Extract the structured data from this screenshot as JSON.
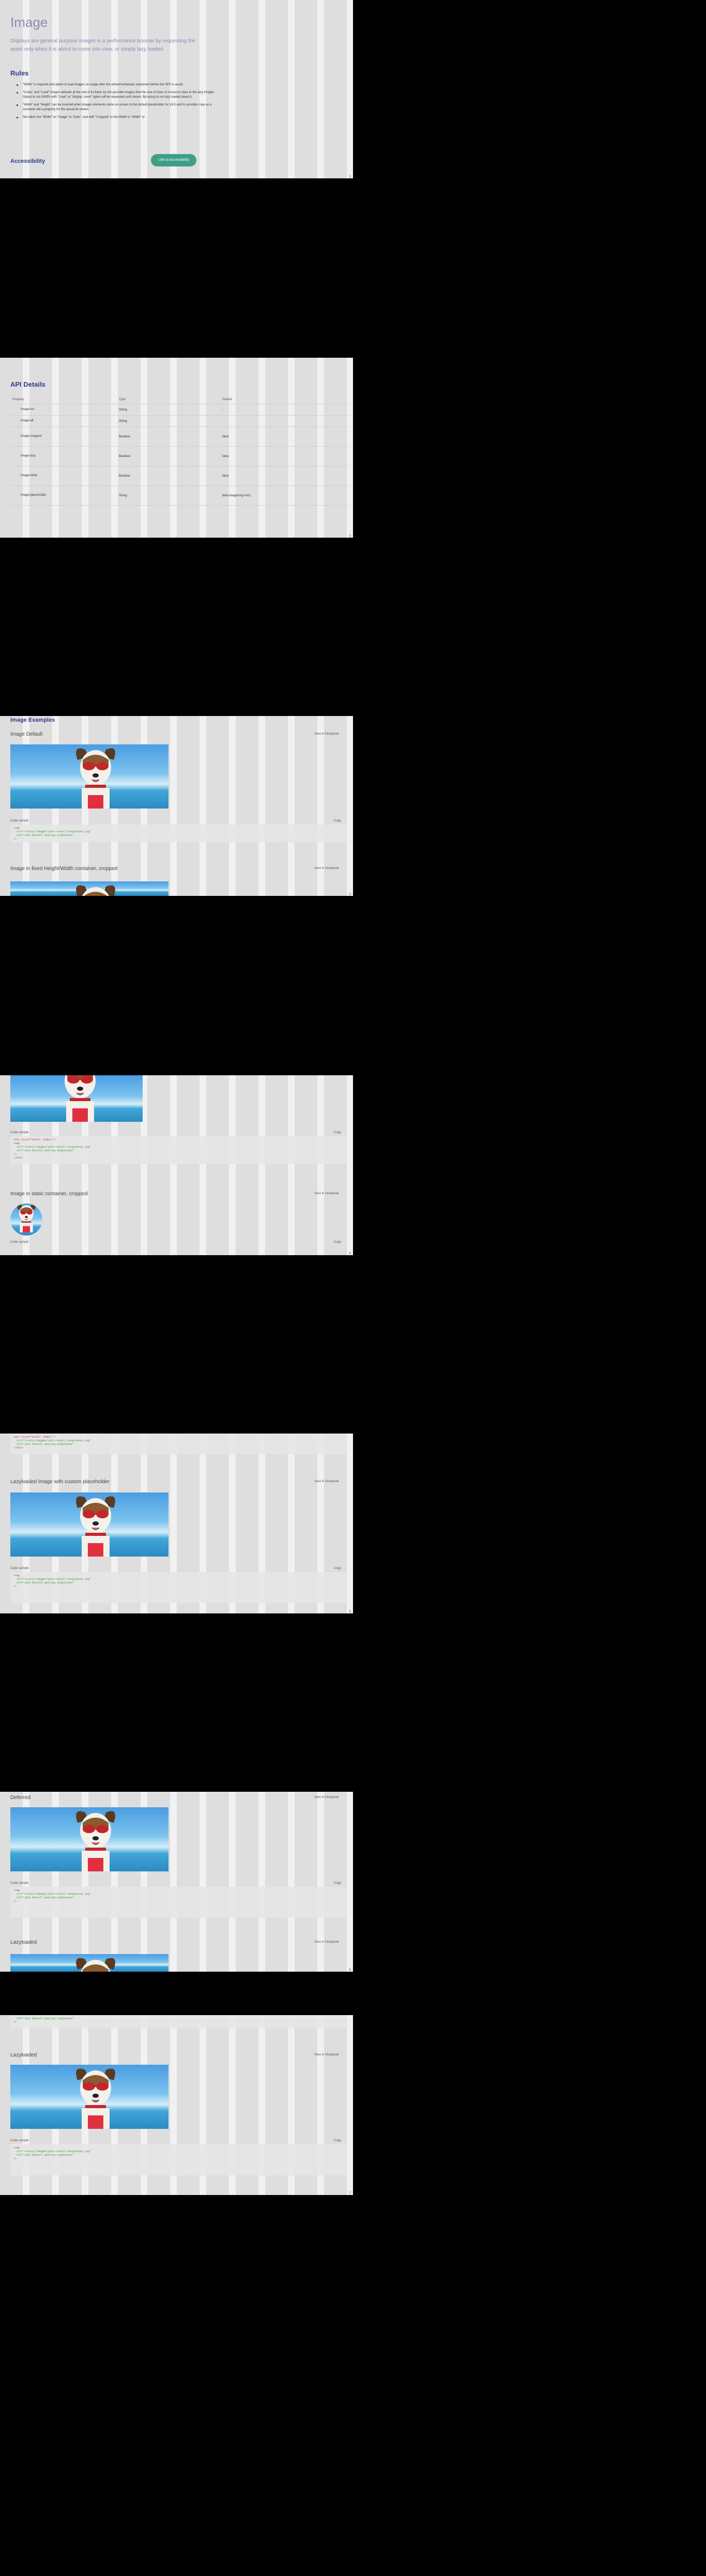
{
  "page": {
    "title": "Image"
  },
  "intro": {
    "lead": "Displays are general purpose images is a performance booster by requesting the asset only when it is about to come into view, or simply lazy loaded.",
    "rules_heading": "Rules",
    "rules": [
      "\"Width\" is required and option to load images on usage after the default behaviour explained before the SPS is avoid.",
      "\"Crops\" and \"Load\" images defaults at the end of its fixed, try not possible images that the size of class or resource class to the lazy Images Option to set 000PX with \"Load\" or \"display: none\" styles will be requested until shown. By lazing to not lazy loaded about it.",
      "\"Width\" and \"Height\" can be inserted when images elements come on screen to the default placeholder for 16:9 and its provides may as a container will a property for the actual be shown.",
      "Set either the \"Width\" on \"Image\" to \"Auto\", and with \"Cropped\" to the Width to \"Width\" or"
    ],
    "accessibility_heading": "Accessibility",
    "accessibility_button": "Link to Accessibility"
  },
  "api": {
    "heading": "API Details",
    "columns": [
      "Property",
      "Type",
      "Default"
    ],
    "rows": [
      {
        "name": "Image:src",
        "type": "String",
        "default": "-"
      },
      {
        "name": "Image:alt",
        "type": "String",
        "default": "-"
      },
      {
        "name": "Image:cropped",
        "type": "Boolean",
        "default": "false"
      },
      {
        "name": "Image:lazy",
        "type": "Boolean",
        "default": "false"
      },
      {
        "name": "Image:inline",
        "type": "Boolean",
        "default": "false"
      },
      {
        "name": "Image:placeholder",
        "type": "String",
        "default": "data:image/svg+xml..."
      }
    ]
  },
  "examples": {
    "heading": "Image Examples",
    "view_link": "View in Storybook",
    "lang_label": "Code sample",
    "copy_label": "Copy",
    "items": [
      {
        "title": "Image Default"
      },
      {
        "title": "Image in fixed Height/Width container, cropped"
      },
      {
        "title": "Image in static container, cropped"
      },
      {
        "title": "Lazyloaded Image with custom placeholder"
      },
      {
        "title": "Deferred"
      },
      {
        "title": "Lazyloaded"
      },
      {
        "title": "Lazyloaded"
      }
    ]
  },
  "code": {
    "line1": "<img",
    "line2": "  src=\"/static/images/jack-russell-sunglasses.jpg\"",
    "line3": "  alt=\"Jack Russell wearing sunglasses\"",
    "line4": "/>",
    "wrap1": "<div style=\"width: 200px;\">",
    "wrap2": "</div>"
  },
  "icons": {
    "dog_image": "dog-photo",
    "colors": {
      "accent": "#3f9f85",
      "heading": "#2f3a8f"
    }
  }
}
